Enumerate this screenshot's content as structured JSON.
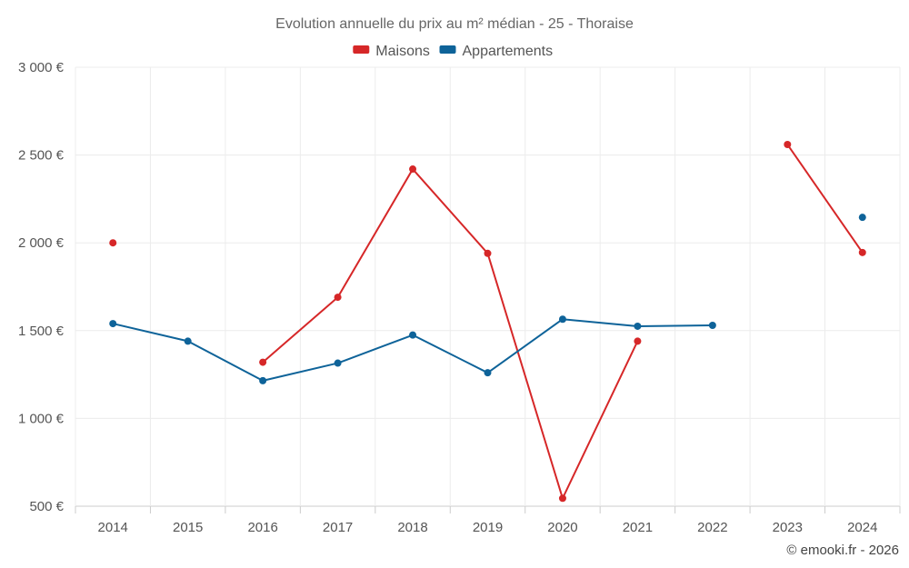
{
  "chart_data": {
    "type": "line",
    "title": "Evolution annuelle du prix au m² médian - 25 - Thoraise",
    "categories": [
      "2014",
      "2015",
      "2016",
      "2017",
      "2018",
      "2019",
      "2020",
      "2021",
      "2022",
      "2023",
      "2024"
    ],
    "series": [
      {
        "name": "Maisons",
        "color": "#d62728",
        "values": [
          2000,
          null,
          1320,
          1690,
          2420,
          1940,
          545,
          1440,
          null,
          2560,
          1945
        ]
      },
      {
        "name": "Appartements",
        "color": "#0e6399",
        "values": [
          1540,
          1440,
          1215,
          1315,
          1475,
          1260,
          1565,
          1525,
          1530,
          null,
          2145
        ]
      }
    ],
    "ylim": [
      500,
      3000
    ],
    "yticks": [
      500,
      1000,
      1500,
      2000,
      2500,
      3000
    ],
    "ytick_labels": [
      "500 €",
      "1 000 €",
      "1 500 €",
      "2 000 €",
      "2 500 €",
      "3 000 €"
    ],
    "xlabel": "",
    "ylabel": "",
    "grid": true,
    "legend_position": "top-center"
  },
  "credit": "© emooki.fr - 2026"
}
